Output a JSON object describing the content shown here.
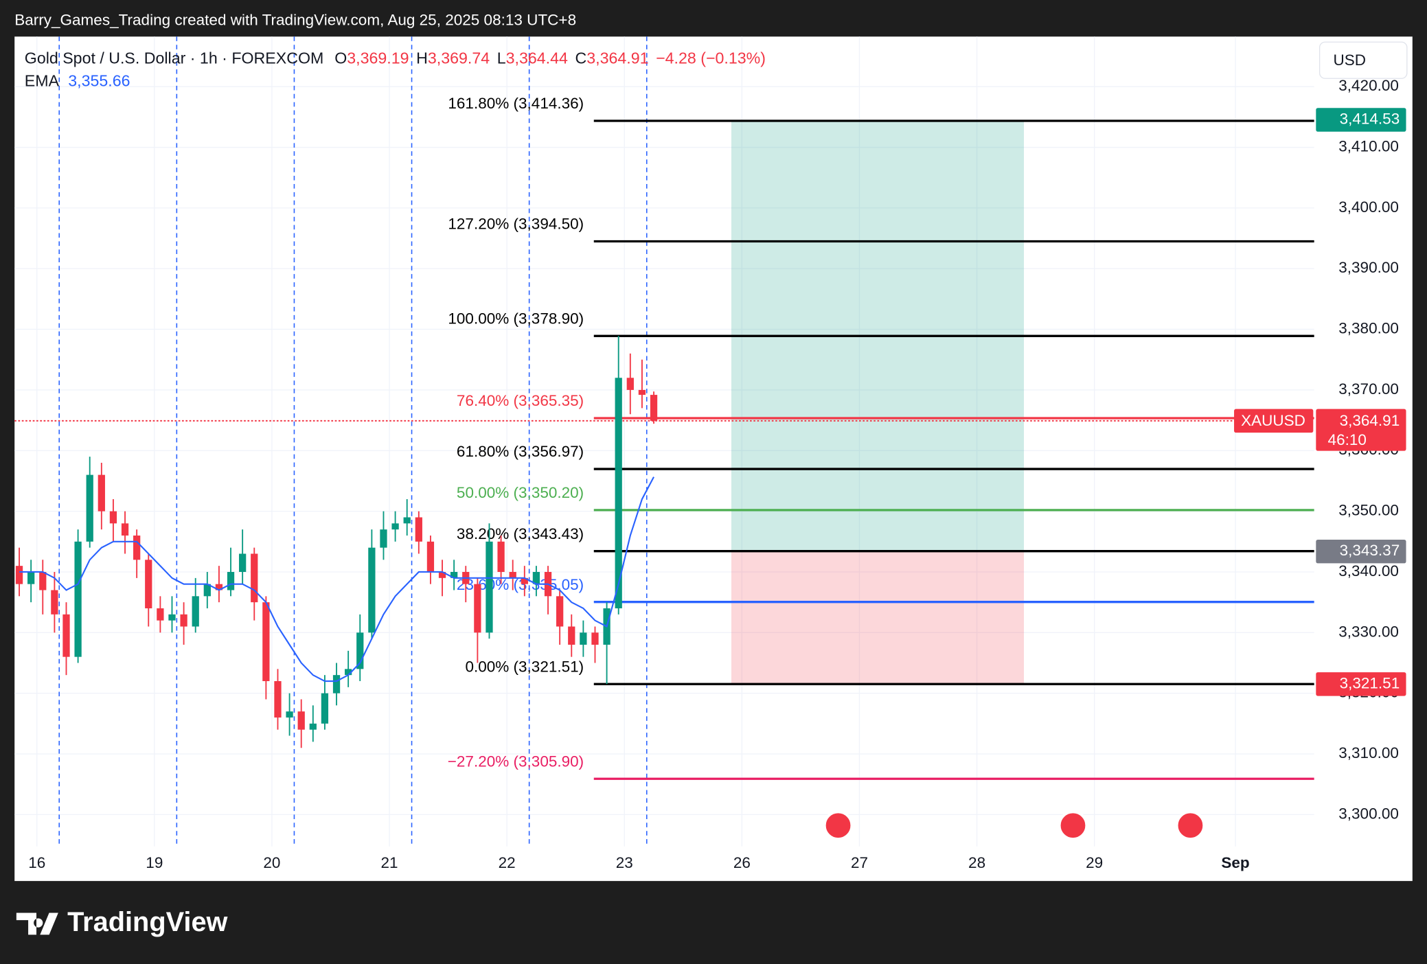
{
  "attribution": "Barry_Games_Trading created with TradingView.com, Aug 25, 2025 08:13 UTC+8",
  "brand": "TradingView",
  "chart_data": {
    "type": "candlestick",
    "title": "Gold Spot / U.S. Dollar · 1h · FOREXCOM",
    "legend": {
      "open_key": "O",
      "open": "3,369.19",
      "high_key": "H",
      "high": "3,369.74",
      "low_key": "L",
      "low": "3,364.44",
      "close_key": "C",
      "close": "3,364.91",
      "change": "−4.28 (−0.13%)"
    },
    "currency": "USD",
    "symbol": "XAUUSD",
    "countdown": "46:10",
    "up_color": "#089981",
    "down_color": "#f23645",
    "x": [
      -0.15,
      -0.05,
      0.05,
      0.15,
      0.25,
      0.35,
      0.45,
      0.55,
      0.65,
      0.75,
      0.85,
      0.95,
      1.05,
      1.15,
      1.25,
      1.35,
      1.45,
      1.55,
      1.65,
      1.75,
      1.85,
      1.95,
      2.05,
      2.15,
      2.25,
      2.35,
      2.45,
      2.55,
      2.65,
      2.75,
      2.85,
      2.95,
      3.05,
      3.15,
      3.25,
      3.35,
      3.45,
      3.55,
      3.65,
      3.75,
      3.85,
      3.95,
      4.05,
      4.15,
      4.25,
      4.35,
      4.45,
      4.55,
      4.65,
      4.75,
      4.85,
      4.95,
      5.05,
      5.15,
      5.25
    ],
    "open": [
      3341,
      3338,
      3340,
      3337,
      3333,
      3326,
      3345,
      3356,
      3350,
      3348,
      3346,
      3342,
      3334,
      3332,
      3333,
      3331,
      3336,
      3338,
      3337,
      3340,
      3343,
      3335,
      3322,
      3316,
      3317,
      3314,
      3315,
      3320,
      3323,
      3324,
      3330,
      3344,
      3347,
      3348,
      3349,
      3345,
      3340,
      3339,
      3340,
      3338,
      3330,
      3345,
      3340,
      3339,
      3338,
      3340,
      3336,
      3331,
      3328,
      3330,
      3328,
      3334,
      3372,
      3370,
      3369.19
    ],
    "high": [
      3344,
      3342,
      3342,
      3340,
      3335,
      3347,
      3359,
      3358,
      3352,
      3350,
      3347,
      3343,
      3336,
      3336,
      3335,
      3339,
      3340,
      3341,
      3344,
      3347,
      3344,
      3336,
      3324,
      3320,
      3319,
      3318,
      3323,
      3325,
      3327,
      3333,
      3347,
      3350,
      3350,
      3352,
      3350,
      3346,
      3342,
      3342,
      3341,
      3339,
      3348,
      3346,
      3342,
      3341,
      3341,
      3341,
      3337,
      3333,
      3332,
      3331,
      3335,
      3378.9,
      3376,
      3375,
      3369.74
    ],
    "low": [
      3336,
      3335,
      3333,
      3330,
      3323,
      3325,
      3344,
      3347,
      3345,
      3343,
      3339,
      3331,
      3330,
      3330,
      3328,
      3330,
      3334,
      3335,
      3336,
      3338,
      3332,
      3319,
      3314,
      3313,
      3311,
      3312,
      3314,
      3318,
      3321,
      3322,
      3329,
      3342,
      3345,
      3346,
      3343,
      3338,
      3336,
      3337,
      3335,
      3325,
      3329,
      3338,
      3337,
      3336,
      3336,
      3333,
      3328,
      3326,
      3326,
      3325,
      3321.51,
      3333,
      3366,
      3367,
      3364.44
    ],
    "close": [
      3338,
      3340,
      3337,
      3333,
      3326,
      3345,
      3356,
      3350,
      3348,
      3346,
      3342,
      3334,
      3332,
      3333,
      3331,
      3336,
      3338,
      3337,
      3340,
      3343,
      3335,
      3322,
      3316,
      3317,
      3314,
      3315,
      3320,
      3323,
      3324,
      3330,
      3344,
      3347,
      3348,
      3349,
      3345,
      3340,
      3339,
      3340,
      3338,
      3330,
      3345,
      3340,
      3339,
      3338,
      3340,
      3336,
      3331,
      3328,
      3330,
      3328,
      3334,
      3372,
      3370,
      3369.19,
      3364.91
    ],
    "series": [
      {
        "name": "EMA",
        "color": "#2962ff",
        "last_label": "3,355.66",
        "values": [
          3340,
          3340,
          3340,
          3339,
          3337,
          3338,
          3342,
          3344,
          3345,
          3345,
          3345,
          3343,
          3341,
          3339,
          3338,
          3338,
          3338,
          3337,
          3338,
          3338,
          3337,
          3335,
          3331,
          3328,
          3325,
          3323,
          3322,
          3322,
          3323,
          3325,
          3329,
          3333,
          3336,
          3338,
          3340,
          3340,
          3340,
          3339,
          3339,
          3339,
          3339,
          3339,
          3339,
          3339,
          3338,
          3338,
          3337,
          3335,
          3334,
          3332,
          3331,
          3338,
          3346,
          3352,
          3355.66
        ]
      }
    ],
    "last_price": 3364.91,
    "last_price_label": "3,364.91",
    "xlim": [
      -0.19,
      10.87
    ],
    "ylim": [
      3294.75,
      3428.25
    ],
    "xticks": [
      {
        "value": 0,
        "label": "16"
      },
      {
        "value": 1,
        "label": "19"
      },
      {
        "value": 2,
        "label": "20"
      },
      {
        "value": 3,
        "label": "21"
      },
      {
        "value": 4,
        "label": "22"
      },
      {
        "value": 5,
        "label": "23"
      },
      {
        "value": 6,
        "label": "26"
      },
      {
        "value": 7,
        "label": "27"
      },
      {
        "value": 8,
        "label": "28"
      },
      {
        "value": 9,
        "label": "29"
      },
      {
        "value": 10.2,
        "label": "Sep"
      }
    ],
    "yticks": [
      {
        "value": 3300,
        "label": "3,300.00"
      },
      {
        "value": 3310,
        "label": "3,310.00"
      },
      {
        "value": 3320,
        "label": "3,320.00"
      },
      {
        "value": 3330,
        "label": "3,330.00"
      },
      {
        "value": 3340,
        "label": "3,340.00"
      },
      {
        "value": 3350,
        "label": "3,350.00"
      },
      {
        "value": 3360,
        "label": "3,360.00"
      },
      {
        "value": 3370,
        "label": "3,370.00"
      },
      {
        "value": 3380,
        "label": "3,380.00"
      },
      {
        "value": 3390,
        "label": "3,390.00"
      },
      {
        "value": 3400,
        "label": "3,400.00"
      },
      {
        "value": 3410,
        "label": "3,410.00"
      },
      {
        "value": 3420,
        "label": "3,420.00"
      }
    ],
    "grid": true,
    "session_lines": [
      0.19,
      1.19,
      2.19,
      3.19,
      4.19,
      5.19
    ],
    "fib": {
      "x_start": 4.74,
      "levels": [
        {
          "label": "161.80% (3,414.36)",
          "value": 3414.36,
          "color": "#000000"
        },
        {
          "label": "127.20% (3,394.50)",
          "value": 3394.5,
          "color": "#000000"
        },
        {
          "label": "100.00% (3,378.90)",
          "value": 3378.9,
          "color": "#000000"
        },
        {
          "label": "76.40% (3,365.35)",
          "value": 3365.35,
          "color": "#f23645"
        },
        {
          "label": "61.80% (3,356.97)",
          "value": 3356.97,
          "color": "#000000"
        },
        {
          "label": "50.00% (3,350.20)",
          "value": 3350.2,
          "color": "#4caf50"
        },
        {
          "label": "38.20% (3,343.43)",
          "value": 3343.43,
          "color": "#000000"
        },
        {
          "label": "23.60% (3,335.05)",
          "value": 3335.05,
          "color": "#2962ff"
        },
        {
          "label": "0.00% (3,321.51)",
          "value": 3321.51,
          "color": "#000000"
        },
        {
          "label": "−27.20% (3,305.90)",
          "value": 3305.9,
          "color": "#e91e63"
        }
      ]
    },
    "position": {
      "x_start": 5.91,
      "x_end": 8.4,
      "target": 3414.53,
      "target_label": "3,414.53",
      "target_color": "#089981",
      "entry": 3343.37,
      "entry_label": "3,343.37",
      "entry_color": "#787b86",
      "stop": 3321.51,
      "stop_label": "3,321.51",
      "stop_color": "#f23645"
    }
  }
}
